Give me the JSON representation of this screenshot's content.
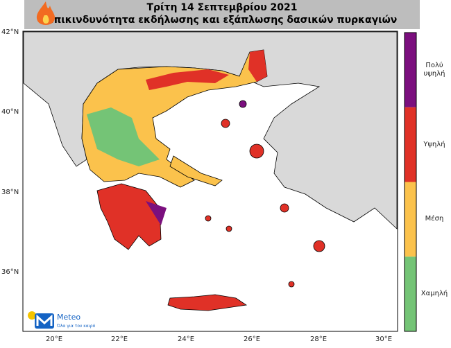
{
  "header": {
    "title": "Τρίτη 14 Σεπτεμβρίου 2021",
    "subtitle": "Επικινδυνότητα εκδήλωσης και εξάπλωσης δασικών πυρκαγιών"
  },
  "map": {
    "lat_labels": [
      "42°N",
      "40°N",
      "38°N",
      "36°N"
    ],
    "lon_labels": [
      "20°E",
      "22°E",
      "24°E",
      "26°E",
      "28°E",
      "30°E"
    ]
  },
  "legend": {
    "levels": [
      {
        "label": "Πολύ υψηλή",
        "color": "#7b0f7e"
      },
      {
        "label": "Υψηλή",
        "color": "#e03127"
      },
      {
        "label": "Μέση",
        "color": "#fbc24c"
      },
      {
        "label": "Χαμηλή",
        "color": "#74c476"
      }
    ]
  },
  "logo": {
    "name": "Meteo",
    "tagline": "Όλα για τον καιρό"
  }
}
